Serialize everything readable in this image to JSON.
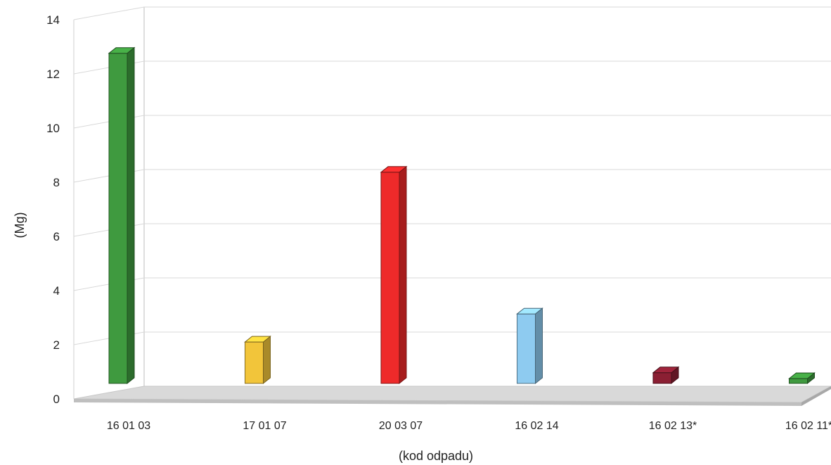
{
  "chart_data": {
    "type": "bar",
    "categories": [
      "16 01 03",
      "17 01 07",
      "20 03 07",
      "16 02 14",
      "16 02 13*",
      "16 02 11*"
    ],
    "values": [
      12.35,
      1.55,
      7.9,
      2.6,
      0.4,
      0.18
    ],
    "colors": [
      "#3f9a3f",
      "#f2c53a",
      "#ee2a2a",
      "#8ecbf0",
      "#8b1f33",
      "#3f9a3f"
    ],
    "xlabel": "(kod odpadu)",
    "ylabel": "(Mg)",
    "ylim": [
      0,
      14
    ],
    "yticks": [
      "0",
      "2",
      "4",
      "6",
      "8",
      "10",
      "12",
      "14"
    ],
    "grid": true,
    "style": "3d-column"
  }
}
